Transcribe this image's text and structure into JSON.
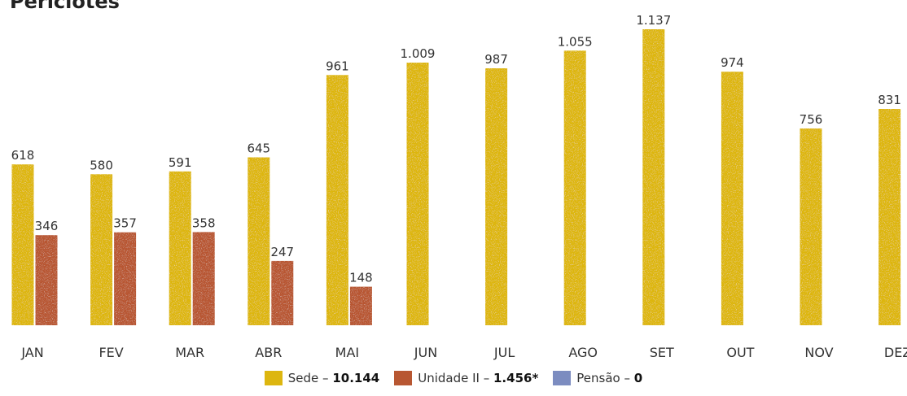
{
  "title": "Períciotes",
  "colors": {
    "sede": "#ddb60f",
    "unidade2": "#b85732",
    "pensao": "#7c8cc0"
  },
  "chart_data": {
    "type": "bar",
    "categories": [
      "JAN",
      "FEV",
      "MAR",
      "ABR",
      "MAI",
      "JUN",
      "JUL",
      "AGO",
      "SET",
      "OUT",
      "NOV",
      "DEZ"
    ],
    "series": [
      {
        "name": "Sede",
        "color": "#ddb60f",
        "values": [
          618,
          580,
          591,
          645,
          961,
          1009,
          987,
          1055,
          1137,
          974,
          756,
          831
        ],
        "labels": [
          "618",
          "580",
          "591",
          "645",
          "961",
          "1.009",
          "987",
          "1.055",
          "1.137",
          "974",
          "756",
          "831"
        ]
      },
      {
        "name": "Unidade II",
        "color": "#b85732",
        "values": [
          346,
          357,
          358,
          247,
          148,
          null,
          null,
          null,
          null,
          null,
          null,
          null
        ],
        "labels": [
          "346",
          "357",
          "358",
          "247",
          "148",
          "",
          "",
          "",
          "",
          "",
          "",
          ""
        ]
      },
      {
        "name": "Pensão",
        "color": "#7c8cc0",
        "values": [
          null,
          null,
          null,
          null,
          null,
          null,
          null,
          null,
          null,
          null,
          null,
          null
        ],
        "labels": [
          "",
          "",
          "",
          "",
          "",
          "",
          "",
          "",
          "",
          "",
          "",
          ""
        ]
      }
    ],
    "ylim": [
      0,
      1137
    ],
    "grid": false,
    "legend_position": "bottom"
  },
  "legend": [
    {
      "label": "Sede – ",
      "total": "10.144",
      "color": "#ddb60f"
    },
    {
      "label": "Unidade II – ",
      "total": "1.456*",
      "color": "#b85732"
    },
    {
      "label": "Pensão – ",
      "total": "0",
      "color": "#7c8cc0"
    }
  ]
}
